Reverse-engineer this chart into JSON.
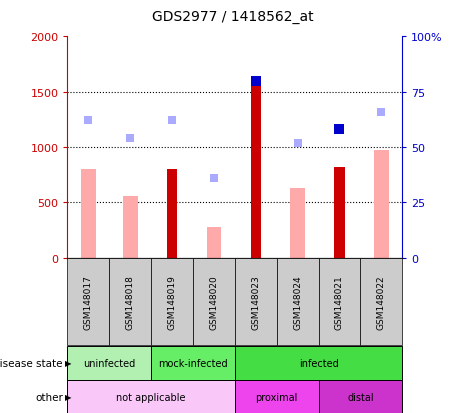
{
  "title": "GDS2977 / 1418562_at",
  "samples": [
    "GSM148017",
    "GSM148018",
    "GSM148019",
    "GSM148020",
    "GSM148023",
    "GSM148024",
    "GSM148021",
    "GSM148022"
  ],
  "count_values": [
    null,
    null,
    800,
    null,
    1580,
    null,
    820,
    null
  ],
  "value_absent": [
    800,
    560,
    null,
    280,
    null,
    630,
    null,
    970
  ],
  "percentile_rank": [
    null,
    null,
    null,
    null,
    80,
    null,
    58,
    null
  ],
  "rank_absent": [
    62,
    54,
    62,
    36,
    null,
    52,
    null,
    66
  ],
  "disease_state": [
    {
      "label": "uninfected",
      "span": [
        0,
        2
      ],
      "color": "#b2f0b2"
    },
    {
      "label": "mock-infected",
      "span": [
        2,
        4
      ],
      "color": "#66ee66"
    },
    {
      "label": "infected",
      "span": [
        4,
        8
      ],
      "color": "#44dd44"
    }
  ],
  "other": [
    {
      "label": "not applicable",
      "span": [
        0,
        4
      ],
      "color": "#f9c8f9"
    },
    {
      "label": "proximal",
      "span": [
        4,
        6
      ],
      "color": "#ee44ee"
    },
    {
      "label": "distal",
      "span": [
        6,
        8
      ],
      "color": "#cc33cc"
    }
  ],
  "ylim_left": [
    0,
    2000
  ],
  "ylim_right": [
    0,
    100
  ],
  "yticks_left": [
    0,
    500,
    1000,
    1500,
    2000
  ],
  "yticks_right": [
    0,
    25,
    50,
    75,
    100
  ],
  "ytick_labels_left": [
    "0",
    "500",
    "1000",
    "1500",
    "2000"
  ],
  "ytick_labels_right": [
    "0",
    "25",
    "50",
    "75",
    "100%"
  ],
  "count_color": "#cc0000",
  "value_absent_color": "#ffaaaa",
  "percentile_color": "#0000cc",
  "rank_absent_color": "#aaaaff",
  "background_color": "#ffffff",
  "tick_area_color": "#cccccc",
  "grid_color": "#000000",
  "count_bar_width": 0.25,
  "absent_bar_width": 0.35
}
